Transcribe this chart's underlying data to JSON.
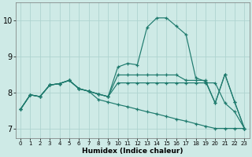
{
  "xlabel": "Humidex (Indice chaleur)",
  "ylabel": "",
  "background_color": "#ceeae6",
  "grid_color": "#aed4d0",
  "line_color": "#1e7a6d",
  "xlim": [
    -0.5,
    23.5
  ],
  "ylim": [
    6.75,
    10.5
  ],
  "xticks": [
    0,
    1,
    2,
    3,
    4,
    5,
    6,
    7,
    8,
    9,
    10,
    11,
    12,
    13,
    14,
    15,
    16,
    17,
    18,
    19,
    20,
    21,
    22,
    23
  ],
  "yticks": [
    7,
    8,
    9,
    10
  ],
  "series": [
    [
      7.55,
      7.95,
      7.9,
      8.22,
      8.26,
      8.35,
      8.12,
      8.05,
      7.97,
      7.9,
      8.72,
      8.82,
      8.78,
      9.82,
      10.08,
      10.08,
      9.85,
      9.62,
      8.42,
      8.32,
      7.72,
      8.52,
      7.75,
      7.02
    ],
    [
      7.55,
      7.95,
      7.9,
      8.22,
      8.26,
      8.35,
      8.12,
      8.05,
      7.97,
      7.9,
      8.28,
      8.28,
      8.28,
      8.28,
      8.28,
      8.28,
      8.28,
      8.28,
      8.28,
      8.28,
      8.28,
      7.72,
      7.48,
      7.02
    ],
    [
      7.55,
      7.95,
      7.9,
      8.22,
      8.26,
      8.35,
      8.12,
      8.05,
      7.97,
      7.9,
      8.5,
      8.5,
      8.5,
      8.5,
      8.5,
      8.5,
      8.5,
      8.35,
      8.35,
      8.35,
      7.72,
      8.52,
      7.75,
      7.02
    ],
    [
      7.55,
      7.95,
      7.9,
      8.22,
      8.26,
      8.35,
      8.12,
      8.05,
      7.82,
      7.75,
      7.68,
      7.62,
      7.55,
      7.48,
      7.42,
      7.35,
      7.28,
      7.22,
      7.15,
      7.08,
      7.02,
      7.02,
      7.02,
      7.02
    ]
  ]
}
